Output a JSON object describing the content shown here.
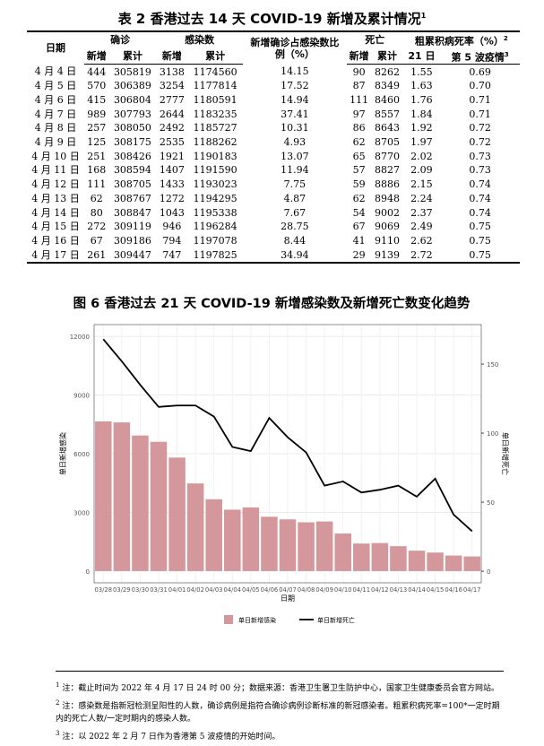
{
  "table": {
    "title": "表 2 香港过去 14 天 COVID-19 新增及累计情况",
    "title_note": "1",
    "header": {
      "date": "日期",
      "confirmed": "确诊",
      "infected": "感染数",
      "ratio": "新增确诊占感染数比例（%）",
      "deaths": "死亡",
      "cfr": "粗累积病死率（%）",
      "cfr_note": "2",
      "sub": [
        "新增",
        "累计",
        "新增",
        "累计",
        "新增",
        "累计",
        "21 日",
        "第 5 波疫情"
      ],
      "sub_note": "3"
    },
    "rows": [
      [
        "4 月 4 日",
        "444",
        "305819",
        "3138",
        "1174560",
        "14.15",
        "90",
        "8262",
        "1.55",
        "0.69"
      ],
      [
        "4 月 5 日",
        "570",
        "306389",
        "3254",
        "1177814",
        "17.52",
        "87",
        "8349",
        "1.63",
        "0.70"
      ],
      [
        "4 月 6 日",
        "415",
        "306804",
        "2777",
        "1180591",
        "14.94",
        "111",
        "8460",
        "1.76",
        "0.71"
      ],
      [
        "4 月 7 日",
        "989",
        "307793",
        "2644",
        "1183235",
        "37.41",
        "97",
        "8557",
        "1.84",
        "0.71"
      ],
      [
        "4 月 8 日",
        "257",
        "308050",
        "2492",
        "1185727",
        "10.31",
        "86",
        "8643",
        "1.92",
        "0.72"
      ],
      [
        "4 月 9 日",
        "125",
        "308175",
        "2535",
        "1188262",
        "4.93",
        "62",
        "8705",
        "1.97",
        "0.72"
      ],
      [
        "4 月 10 日",
        "251",
        "308426",
        "1921",
        "1190183",
        "13.07",
        "65",
        "8770",
        "2.02",
        "0.73"
      ],
      [
        "4 月 11 日",
        "168",
        "308594",
        "1407",
        "1191590",
        "11.94",
        "57",
        "8827",
        "2.09",
        "0.73"
      ],
      [
        "4 月 12 日",
        "111",
        "308705",
        "1433",
        "1193023",
        "7.75",
        "59",
        "8886",
        "2.15",
        "0.74"
      ],
      [
        "4 月 13 日",
        "62",
        "308767",
        "1272",
        "1194295",
        "4.87",
        "62",
        "8948",
        "2.24",
        "0.74"
      ],
      [
        "4 月 14 日",
        "80",
        "308847",
        "1043",
        "1195338",
        "7.67",
        "54",
        "9002",
        "2.37",
        "0.74"
      ],
      [
        "4 月 15 日",
        "272",
        "309119",
        "946",
        "1196284",
        "28.75",
        "67",
        "9069",
        "2.49",
        "0.75"
      ],
      [
        "4 月 16 日",
        "67",
        "309186",
        "794",
        "1197078",
        "8.44",
        "41",
        "9110",
        "2.62",
        "0.75"
      ],
      [
        "4 月 17 日",
        "261",
        "309447",
        "747",
        "1197825",
        "34.94",
        "29",
        "9139",
        "2.72",
        "0.75"
      ]
    ]
  },
  "chart_data": {
    "type": "bar",
    "title": "图 6 香港过去 21 天 COVID-19 新增感染数及新增死亡数变化趋势",
    "x_label": "日期",
    "y_label": "单日新增感染",
    "y2_label": "单日新增死亡",
    "categories": [
      "03/28",
      "03/29",
      "03/30",
      "03/31",
      "04/01",
      "04/02",
      "04/03",
      "04/04",
      "04/05",
      "04/06",
      "04/07",
      "04/08",
      "04/09",
      "04/10",
      "04/11",
      "04/12",
      "04/13",
      "04/14",
      "04/15",
      "04/16",
      "04/17"
    ],
    "series": [
      {
        "name": "单日新增感染",
        "type": "bar",
        "color": "#d4979c",
        "values": [
          7650,
          7600,
          6930,
          6610,
          5800,
          4480,
          3670,
          3138,
          3254,
          2777,
          2644,
          2492,
          2535,
          1921,
          1407,
          1433,
          1272,
          1043,
          946,
          794,
          747
        ]
      },
      {
        "name": "单日新增死亡",
        "type": "line",
        "axis": "y2",
        "color": "#000000",
        "values": [
          168,
          152,
          135,
          119,
          120,
          120,
          112,
          90,
          87,
          111,
          97,
          86,
          62,
          65,
          57,
          59,
          62,
          54,
          67,
          41,
          29
        ]
      }
    ],
    "ylim": [
      -600,
      12600
    ],
    "yticks": [
      0,
      3000,
      6000,
      9000,
      12000
    ],
    "y2lim": [
      -8.4,
      178.6
    ],
    "y2ticks": [
      0,
      50,
      100,
      150
    ],
    "grid": true,
    "legend": "bottom"
  },
  "footnotes": [
    {
      "mark": "1",
      "text": "注：截止时间为 2022 年 4 月 17 日 24 时 00 分；数据来源：香港卫生署卫生防护中心，国家卫生健康委员会官方网站。"
    },
    {
      "mark": "2",
      "text": "注：感染数是指新冠检测呈阳性的人数，确诊病例是指符合确诊病例诊断标准的新冠感染者。粗累积病死率=100*一定时期内的死亡人数/一定时期内的感染人数。"
    },
    {
      "mark": "3",
      "text": "注：以 2022 年 2 月 7 日作为香港第 5 波疫情的开始时间。"
    }
  ]
}
